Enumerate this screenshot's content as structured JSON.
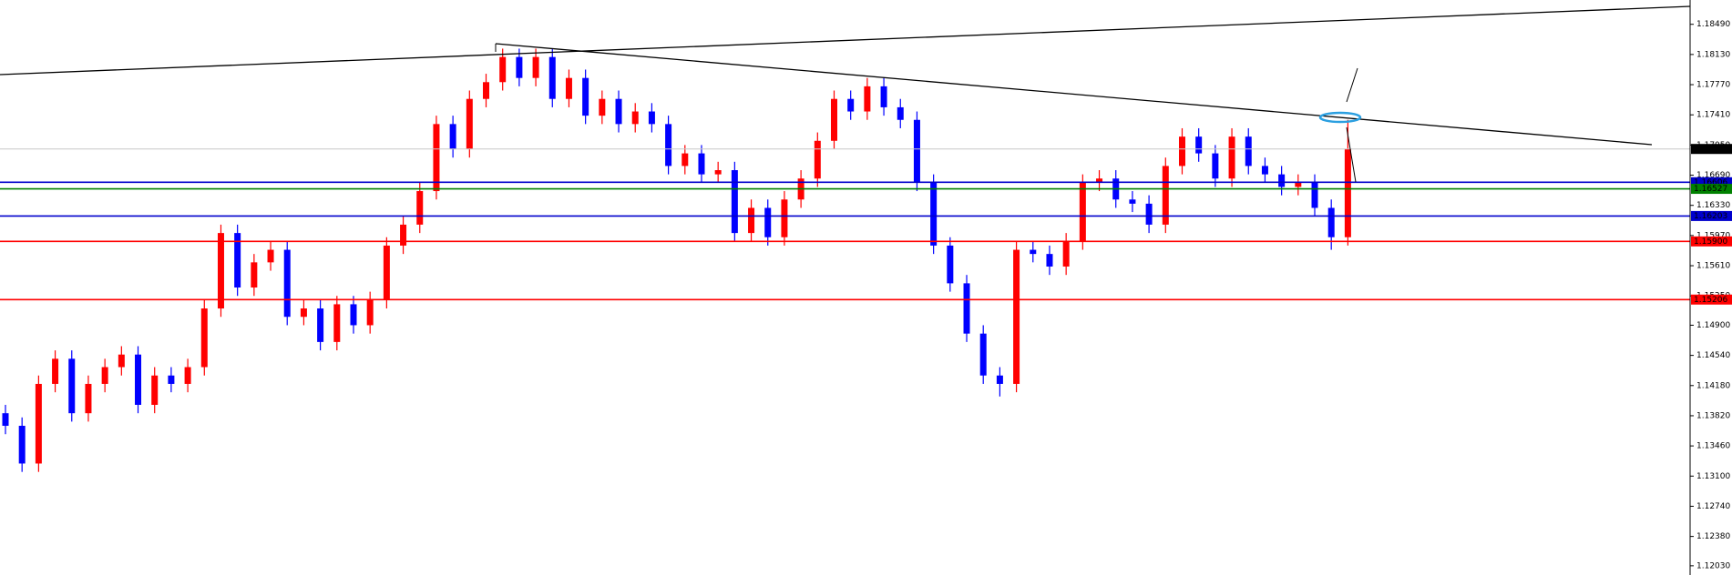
{
  "chart_data": {
    "type": "candlestick",
    "up_color": "#ff0000",
    "down_color": "#0000ff",
    "open": [
      1.1385,
      1.137,
      1.1325,
      1.142,
      1.145,
      1.1385,
      1.142,
      1.144,
      1.1455,
      1.1395,
      1.143,
      1.142,
      1.144,
      1.151,
      1.16,
      1.1535,
      1.1565,
      1.158,
      1.15,
      1.151,
      1.147,
      1.1515,
      1.149,
      1.152,
      1.1585,
      1.161,
      1.165,
      1.173,
      1.17,
      1.176,
      1.178,
      1.181,
      1.1785,
      1.181,
      1.176,
      1.1785,
      1.174,
      1.176,
      1.173,
      1.1745,
      1.173,
      1.168,
      1.1695,
      1.167,
      1.1675,
      1.16,
      1.163,
      1.1595,
      1.164,
      1.1665,
      1.171,
      1.176,
      1.1745,
      1.1775,
      1.175,
      1.1735,
      1.166,
      1.1585,
      1.154,
      1.148,
      1.143,
      1.142,
      1.158,
      1.1575,
      1.156,
      1.159,
      1.166,
      1.1665,
      1.164,
      1.1635,
      1.161,
      1.168,
      1.1715,
      1.1695,
      1.1665,
      1.1715,
      1.168,
      1.167,
      1.1655,
      1.166,
      1.163,
      1.1595
    ],
    "high": [
      1.1395,
      1.138,
      1.143,
      1.146,
      1.146,
      1.143,
      1.145,
      1.1465,
      1.1465,
      1.144,
      1.144,
      1.145,
      1.152,
      1.161,
      1.161,
      1.1575,
      1.159,
      1.159,
      1.152,
      1.152,
      1.1525,
      1.1525,
      1.153,
      1.1595,
      1.162,
      1.166,
      1.174,
      1.174,
      1.177,
      1.179,
      1.182,
      1.182,
      1.182,
      1.182,
      1.1795,
      1.1795,
      1.177,
      1.177,
      1.1755,
      1.1755,
      1.174,
      1.1705,
      1.1705,
      1.1685,
      1.1685,
      1.164,
      1.164,
      1.165,
      1.1675,
      1.172,
      1.177,
      1.177,
      1.1785,
      1.1785,
      1.176,
      1.1745,
      1.167,
      1.1595,
      1.155,
      1.149,
      1.144,
      1.159,
      1.159,
      1.1585,
      1.16,
      1.167,
      1.1675,
      1.1675,
      1.165,
      1.1645,
      1.169,
      1.1725,
      1.1725,
      1.1705,
      1.1725,
      1.1725,
      1.169,
      1.168,
      1.167,
      1.167,
      1.164,
      1.1735
    ],
    "low": [
      1.136,
      1.1315,
      1.1315,
      1.141,
      1.1375,
      1.1375,
      1.141,
      1.143,
      1.1385,
      1.1385,
      1.141,
      1.141,
      1.143,
      1.15,
      1.1525,
      1.1525,
      1.1555,
      1.149,
      1.149,
      1.146,
      1.146,
      1.148,
      1.148,
      1.151,
      1.1575,
      1.16,
      1.164,
      1.169,
      1.169,
      1.175,
      1.177,
      1.1775,
      1.1775,
      1.175,
      1.175,
      1.173,
      1.173,
      1.172,
      1.172,
      1.172,
      1.167,
      1.167,
      1.166,
      1.166,
      1.159,
      1.159,
      1.1585,
      1.1585,
      1.163,
      1.1655,
      1.17,
      1.1735,
      1.1735,
      1.174,
      1.1725,
      1.165,
      1.1575,
      1.153,
      1.147,
      1.142,
      1.1405,
      1.141,
      1.1565,
      1.155,
      1.155,
      1.158,
      1.165,
      1.163,
      1.1625,
      1.16,
      1.16,
      1.167,
      1.1685,
      1.1655,
      1.1655,
      1.167,
      1.166,
      1.1645,
      1.1645,
      1.162,
      1.158,
      1.1585
    ],
    "close": [
      1.137,
      1.1325,
      1.142,
      1.145,
      1.1385,
      1.142,
      1.144,
      1.1455,
      1.1395,
      1.143,
      1.142,
      1.144,
      1.151,
      1.16,
      1.1535,
      1.1565,
      1.158,
      1.15,
      1.151,
      1.147,
      1.1515,
      1.149,
      1.152,
      1.1585,
      1.161,
      1.165,
      1.173,
      1.17,
      1.176,
      1.178,
      1.181,
      1.1785,
      1.181,
      1.176,
      1.1785,
      1.174,
      1.176,
      1.173,
      1.1745,
      1.173,
      1.168,
      1.1695,
      1.167,
      1.1675,
      1.16,
      1.163,
      1.1595,
      1.164,
      1.1665,
      1.171,
      1.176,
      1.1745,
      1.1775,
      1.175,
      1.1735,
      1.166,
      1.1585,
      1.154,
      1.148,
      1.143,
      1.142,
      1.158,
      1.1575,
      1.156,
      1.159,
      1.166,
      1.1665,
      1.164,
      1.1635,
      1.161,
      1.168,
      1.1715,
      1.1695,
      1.1665,
      1.1715,
      1.168,
      1.167,
      1.1655,
      1.166,
      1.163,
      1.1595,
      1.17
    ],
    "ylim": [
      1.1192,
      1.1878
    ],
    "yticks": [
      {
        "value": 1.1203,
        "label": "1.12030"
      },
      {
        "value": 1.1238,
        "label": "1.12380"
      },
      {
        "value": 1.1274,
        "label": "1.12740"
      },
      {
        "value": 1.131,
        "label": "1.13100"
      },
      {
        "value": 1.1346,
        "label": "1.13460"
      },
      {
        "value": 1.1382,
        "label": "1.13820"
      },
      {
        "value": 1.1418,
        "label": "1.14180"
      },
      {
        "value": 1.1454,
        "label": "1.14540"
      },
      {
        "value": 1.149,
        "label": "1.14900"
      },
      {
        "value": 1.1525,
        "label": "1.15250"
      },
      {
        "value": 1.1561,
        "label": "1.15610"
      },
      {
        "value": 1.1597,
        "label": "1.15970"
      },
      {
        "value": 1.1633,
        "label": "1.16330"
      },
      {
        "value": 1.1669,
        "label": "1.16690"
      },
      {
        "value": 1.1705,
        "label": "1.17050"
      },
      {
        "value": 1.1741,
        "label": "1.17410"
      },
      {
        "value": 1.1777,
        "label": "1.17770"
      },
      {
        "value": 1.1813,
        "label": "1.18130"
      },
      {
        "value": 1.1849,
        "label": "1.18490"
      }
    ],
    "levels": [
      {
        "value": 1.17003,
        "label": "1.17003",
        "color": "#c8c8c8",
        "label_color": "#000000"
      },
      {
        "value": 1.16606,
        "label": "1.16606",
        "color": "#0000cc",
        "label_color": "#0000cc"
      },
      {
        "value": 1.16527,
        "label": "1.16527",
        "color": "#008000",
        "label_color": "#008000"
      },
      {
        "value": 1.16203,
        "label": "1.16203",
        "color": "#0000cc",
        "label_color": "#0000cc"
      },
      {
        "value": 1.159,
        "label": "1.15900",
        "color": "#ff0000",
        "label_color": "#ff0000"
      },
      {
        "value": 1.15206,
        "label": "1.15206",
        "color": "#ff0000",
        "label_color": "#ff0000"
      }
    ]
  }
}
